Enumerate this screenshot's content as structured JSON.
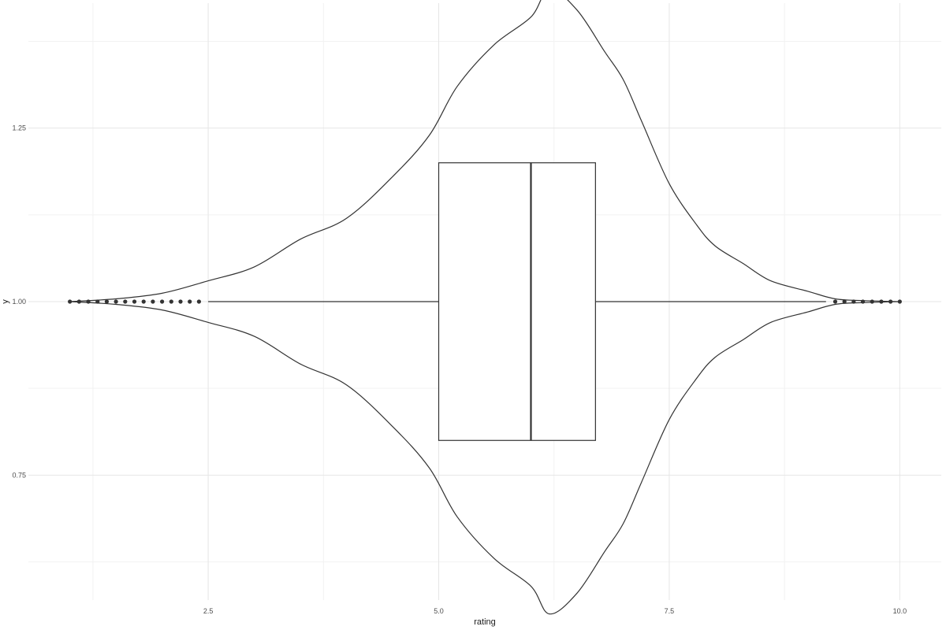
{
  "chart_data": {
    "type": "violin",
    "title": "",
    "xlabel": "rating",
    "ylabel": "y",
    "xlim": [
      0.55,
      10.45
    ],
    "ylim": [
      0.57,
      1.43
    ],
    "x_ticks": [
      {
        "value": 2.5,
        "label": "2.5"
      },
      {
        "value": 5.0,
        "label": "5.0"
      },
      {
        "value": 7.5,
        "label": "7.5"
      },
      {
        "value": 10.0,
        "label": "10.0"
      }
    ],
    "y_ticks": [
      {
        "value": 0.75,
        "label": "0.75"
      },
      {
        "value": 1.0,
        "label": "1.00"
      },
      {
        "value": 1.25,
        "label": "1.25"
      }
    ],
    "grid": true,
    "violin": {
      "center": 1.0,
      "half_width": [
        [
          1.0,
          0.0
        ],
        [
          1.5,
          0.004
        ],
        [
          2.0,
          0.012
        ],
        [
          2.5,
          0.03
        ],
        [
          3.0,
          0.05
        ],
        [
          3.5,
          0.09
        ],
        [
          4.0,
          0.12
        ],
        [
          4.5,
          0.18
        ],
        [
          4.9,
          0.24
        ],
        [
          5.2,
          0.31
        ],
        [
          5.6,
          0.37
        ],
        [
          6.0,
          0.41
        ],
        [
          6.2,
          0.45
        ],
        [
          6.5,
          0.42
        ],
        [
          6.8,
          0.36
        ],
        [
          7.0,
          0.32
        ],
        [
          7.2,
          0.26
        ],
        [
          7.5,
          0.17
        ],
        [
          7.8,
          0.11
        ],
        [
          8.0,
          0.08
        ],
        [
          8.3,
          0.055
        ],
        [
          8.6,
          0.03
        ],
        [
          9.0,
          0.015
        ],
        [
          9.3,
          0.004
        ],
        [
          9.6,
          0.0015
        ],
        [
          10.0,
          0.0
        ]
      ]
    },
    "boxplot": {
      "q1": 5.0,
      "median": 6.0,
      "q3": 6.7,
      "whisker_low": 2.5,
      "whisker_high": 9.2,
      "box_half_height": 0.2,
      "outliers": [
        1.0,
        1.1,
        1.2,
        1.3,
        1.4,
        1.5,
        1.6,
        1.7,
        1.8,
        1.9,
        2.0,
        2.1,
        2.2,
        2.3,
        2.4,
        9.3,
        9.4,
        9.5,
        9.6,
        9.7,
        9.8,
        9.9,
        10.0
      ]
    }
  }
}
